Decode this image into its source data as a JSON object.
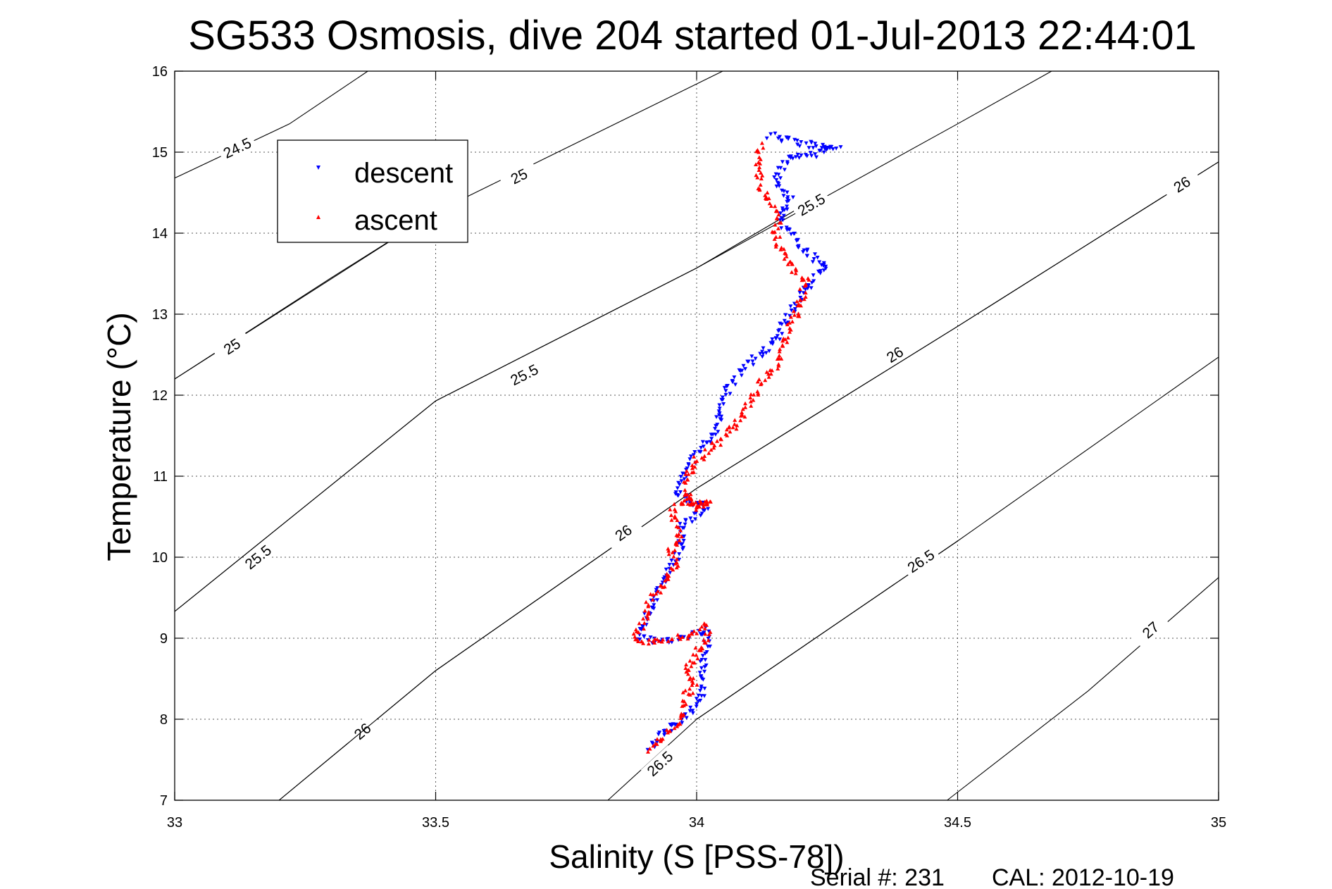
{
  "chart_data": {
    "type": "scatter",
    "title": "SG533 Osmosis, dive 204 started 01-Jul-2013 22:44:01",
    "xlabel": "Salinity (S [PSS-78])",
    "ylabel": "Temperature (°C)",
    "xlim": [
      33,
      35
    ],
    "ylim": [
      7,
      16
    ],
    "xticks": [
      33,
      33.5,
      34,
      34.5,
      35
    ],
    "xtick_labels": [
      "33",
      "33.5",
      "34",
      "34.5",
      "35"
    ],
    "yticks": [
      7,
      8,
      9,
      10,
      11,
      12,
      13,
      14,
      15,
      16
    ],
    "ytick_labels": [
      "7",
      "8",
      "9",
      "10",
      "11",
      "12",
      "13",
      "14",
      "15",
      "16"
    ],
    "grid": true,
    "legend_position": "top-left",
    "contours": [
      {
        "label": "24.5",
        "points": [
          [
            33,
            14.68
          ],
          [
            33.22,
            15.35
          ],
          [
            33.37,
            16
          ]
        ],
        "label_at": [
          33.12,
          15.05
        ]
      },
      {
        "label": "25",
        "points": [
          [
            33,
            12.2
          ],
          [
            33.5,
            14.26
          ],
          [
            34.05,
            16
          ]
        ],
        "label_at": [
          33.66,
          14.7
        ]
      },
      {
        "label": "25",
        "points": [
          [
            33,
            12.2
          ],
          [
            33.3,
            13.45
          ],
          [
            33.5,
            14.26
          ]
        ],
        "label_at": [
          33.11,
          12.6
        ]
      },
      {
        "label": "25.5",
        "points": [
          [
            33,
            9.33
          ],
          [
            33.5,
            11.93
          ],
          [
            34.0,
            13.57
          ],
          [
            34.5,
            15.35
          ],
          [
            34.68,
            16
          ]
        ],
        "label_at": [
          33.16,
          10.0
        ]
      },
      {
        "label": "25.5",
        "points": [
          [
            33,
            9.33
          ],
          [
            33.5,
            11.93
          ],
          [
            34.0,
            13.57
          ]
        ],
        "label_at": [
          33.67,
          12.25
        ]
      },
      {
        "label": "25.5",
        "points": [
          [
            34.0,
            13.57
          ],
          [
            34.22,
            14.4
          ]
        ],
        "label_at": [
          34.22,
          14.35
        ]
      },
      {
        "label": "26",
        "points": [
          [
            33.2,
            7
          ],
          [
            33.5,
            8.6
          ],
          [
            34.0,
            10.85
          ],
          [
            34.5,
            12.85
          ],
          [
            35,
            14.88
          ]
        ],
        "label_at": [
          33.36,
          7.85
        ]
      },
      {
        "label": "26",
        "points": [
          [
            33.2,
            7
          ],
          [
            33.5,
            8.6
          ],
          [
            34.0,
            10.85
          ]
        ],
        "label_at": [
          33.86,
          10.3
        ]
      },
      {
        "label": "26",
        "points": [
          [
            34.0,
            10.85
          ],
          [
            34.5,
            12.85
          ]
        ],
        "label_at": [
          34.38,
          12.5
        ]
      },
      {
        "label": "26",
        "points": [
          [
            34.5,
            12.85
          ],
          [
            35,
            14.88
          ]
        ],
        "label_at": [
          34.93,
          14.6
        ]
      },
      {
        "label": "26.5",
        "points": [
          [
            33.83,
            7
          ],
          [
            34.0,
            8.0
          ],
          [
            34.5,
            10.2
          ],
          [
            35,
            12.47
          ]
        ],
        "label_at": [
          33.93,
          7.45
        ]
      },
      {
        "label": "26.5",
        "points": [
          [
            34.0,
            8.0
          ],
          [
            34.5,
            10.2
          ]
        ],
        "label_at": [
          34.43,
          9.95
        ]
      },
      {
        "label": "27",
        "points": [
          [
            34.48,
            7
          ],
          [
            34.75,
            8.35
          ],
          [
            35,
            9.75
          ]
        ],
        "label_at": [
          34.87,
          9.1
        ]
      }
    ],
    "series": [
      {
        "name": "descent",
        "color": "#0000ff",
        "marker": "triangle-down",
        "path": [
          [
            34.14,
            15.2
          ],
          [
            34.2,
            15.1
          ],
          [
            34.27,
            15.05
          ],
          [
            34.17,
            14.9
          ],
          [
            34.15,
            14.6
          ],
          [
            34.18,
            14.4
          ],
          [
            34.16,
            14.15
          ],
          [
            34.18,
            14.0
          ],
          [
            34.2,
            13.8
          ],
          [
            34.25,
            13.6
          ],
          [
            34.22,
            13.4
          ],
          [
            34.2,
            13.2
          ],
          [
            34.16,
            12.8
          ],
          [
            34.14,
            12.6
          ],
          [
            34.1,
            12.4
          ],
          [
            34.06,
            12.1
          ],
          [
            34.05,
            11.9
          ],
          [
            34.04,
            11.6
          ],
          [
            34.0,
            11.3
          ],
          [
            33.98,
            11.0
          ],
          [
            33.96,
            10.8
          ],
          [
            34.02,
            10.6
          ],
          [
            33.97,
            10.4
          ],
          [
            33.97,
            10.1
          ],
          [
            33.94,
            9.8
          ],
          [
            33.92,
            9.5
          ],
          [
            33.9,
            9.2
          ],
          [
            33.89,
            9.0
          ],
          [
            33.93,
            8.95
          ],
          [
            33.97,
            9.0
          ],
          [
            34.0,
            9.05
          ],
          [
            34.02,
            9.1
          ],
          [
            34.02,
            8.9
          ],
          [
            34.01,
            8.6
          ],
          [
            34.01,
            8.3
          ],
          [
            33.99,
            8.1
          ],
          [
            33.96,
            7.95
          ],
          [
            33.93,
            7.8
          ],
          [
            33.91,
            7.6
          ]
        ]
      },
      {
        "name": "ascent",
        "color": "#ff0000",
        "marker": "triangle-up",
        "path": [
          [
            33.91,
            7.6
          ],
          [
            33.94,
            7.8
          ],
          [
            33.97,
            8.0
          ],
          [
            33.98,
            8.3
          ],
          [
            34.0,
            8.4
          ],
          [
            33.98,
            8.6
          ],
          [
            34.0,
            8.8
          ],
          [
            34.02,
            9.0
          ],
          [
            34.02,
            9.15
          ],
          [
            33.99,
            9.05
          ],
          [
            33.95,
            9.0
          ],
          [
            33.91,
            8.95
          ],
          [
            33.88,
            9.0
          ],
          [
            33.9,
            9.2
          ],
          [
            33.91,
            9.45
          ],
          [
            33.94,
            9.7
          ],
          [
            33.96,
            9.9
          ],
          [
            33.95,
            10.1
          ],
          [
            33.97,
            10.3
          ],
          [
            33.95,
            10.55
          ],
          [
            33.98,
            10.75
          ],
          [
            34.0,
            10.65
          ],
          [
            34.03,
            10.7
          ],
          [
            34.0,
            10.6
          ],
          [
            33.98,
            10.8
          ],
          [
            33.98,
            11.0
          ],
          [
            34.0,
            11.2
          ],
          [
            34.04,
            11.4
          ],
          [
            34.07,
            11.6
          ],
          [
            34.1,
            11.9
          ],
          [
            34.13,
            12.2
          ],
          [
            34.16,
            12.45
          ],
          [
            34.17,
            12.7
          ],
          [
            34.19,
            13.0
          ],
          [
            34.2,
            13.2
          ],
          [
            34.21,
            13.4
          ],
          [
            34.18,
            13.6
          ],
          [
            34.16,
            13.8
          ],
          [
            34.15,
            14.0
          ],
          [
            34.16,
            14.2
          ],
          [
            34.13,
            14.45
          ],
          [
            34.12,
            14.7
          ],
          [
            34.12,
            15.0
          ],
          [
            34.13,
            15.1
          ]
        ]
      }
    ]
  },
  "footer": {
    "serial": "Serial #: 231",
    "cal": "CAL: 2012-10-19"
  }
}
